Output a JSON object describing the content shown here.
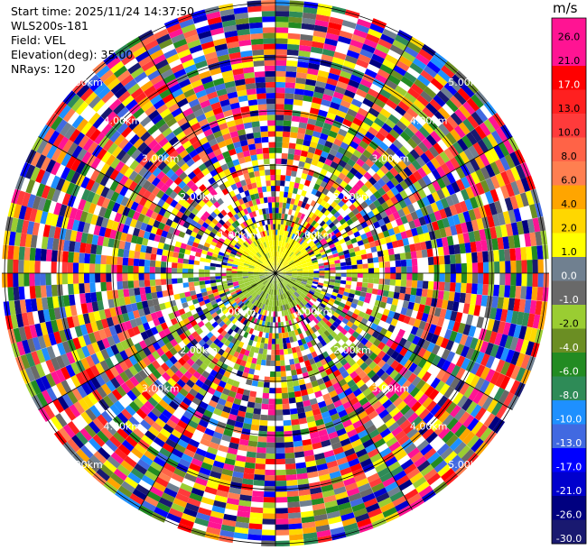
{
  "info": {
    "start_time": "Start time: 2025/11/24 14:37:50",
    "station": "WLS200s-181",
    "field": "Field: VEL",
    "elevation": "Elevation(deg): 35.00",
    "nrays": "NRays: 120"
  },
  "chart_data": {
    "type": "heatmap",
    "subtype": "polar-ppi",
    "field": "VEL",
    "unit": "m/s",
    "range_ring_labels": [
      "1.00km",
      "2.00km",
      "3.00km",
      "4.00km",
      "5.00km"
    ],
    "colorbar": {
      "ticks": [
        "26.0",
        "21.0",
        "17.0",
        "13.0",
        "10.0",
        "8.0",
        "6.0",
        "4.0",
        "2.0",
        "1.0",
        "0.0",
        "-1.0",
        "-2.0",
        "-4.0",
        "-6.0",
        "-8.0",
        "-10.0",
        "-13.0",
        "-17.0",
        "-21.0",
        "-26.0",
        "-30.0"
      ],
      "colors": [
        "#ff1493",
        "#ff1493",
        "#ff0000",
        "#ff2020",
        "#ff3b3b",
        "#ff6347",
        "#ff7f50",
        "#ffa500",
        "#ffd700",
        "#ffff00",
        "#708090",
        "#696969",
        "#9acd32",
        "#6b8e23",
        "#228b22",
        "#2e8b57",
        "#1e90ff",
        "#4169e1",
        "#0000ff",
        "#0000cd",
        "#000080",
        "#191970"
      ]
    }
  }
}
